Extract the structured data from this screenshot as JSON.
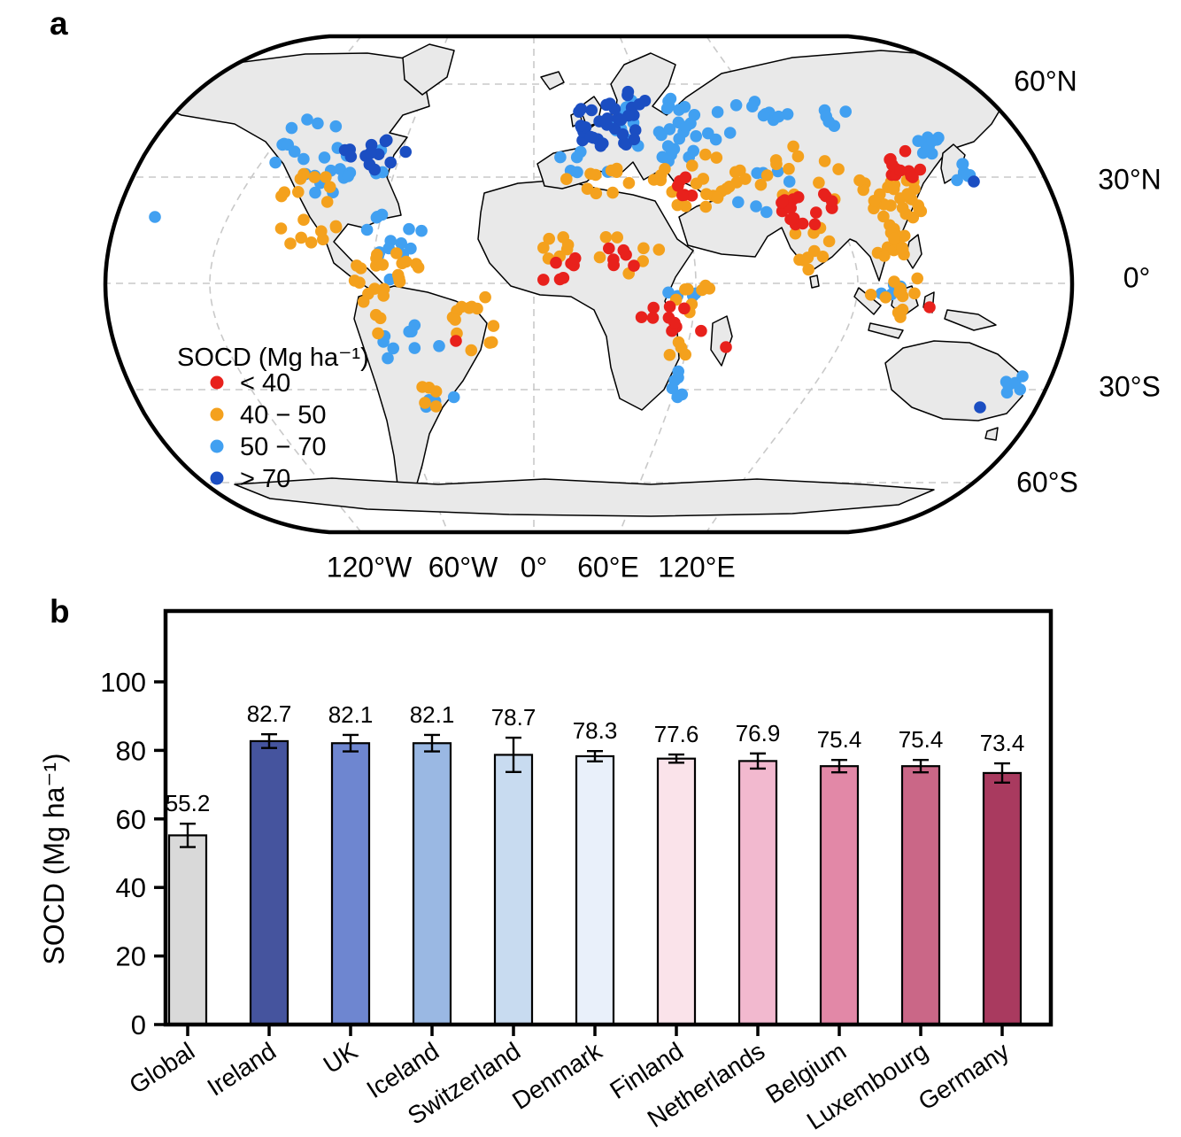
{
  "panels": {
    "a": "a",
    "b": "b"
  },
  "map": {
    "legend": {
      "title": "SOCD (Mg ha⁻¹)",
      "items": [
        {
          "label": "< 40",
          "color": "#e8211c"
        },
        {
          "label": "40 − 50",
          "color": "#f4a11d"
        },
        {
          "label": "50 − 70",
          "color": "#41a0f1"
        },
        {
          "label": "> 70",
          "color": "#1b4ec2"
        }
      ]
    },
    "lat_labels": [
      "60°N",
      "30°N",
      "0°",
      "30°S",
      "60°S"
    ],
    "lon_labels": [
      "120°W",
      "60°W",
      "0°",
      "60°E",
      "120°E"
    ]
  },
  "chart_data": [
    {
      "type": "scatter",
      "title": "Global distribution of SOCD sampling sites",
      "legend_title": "SOCD (Mg ha⁻¹)",
      "categories": [
        "< 40",
        "40 − 50",
        "50 − 70",
        "> 70"
      ],
      "colors": {
        "r": "#e8211c",
        "o": "#f4a11d",
        "b": "#41a0f1",
        "n": "#1b4ec2"
      },
      "dot_radius": 6.8,
      "clusters": [
        [
          260,
          140,
          67,
          45,
          26,
          "b"
        ],
        [
          330,
          232,
          35,
          28,
          10,
          "b"
        ],
        [
          352,
          360,
          40,
          28,
          9,
          "b"
        ],
        [
          372,
          418,
          30,
          14,
          4,
          "b"
        ],
        [
          331,
          263,
          33,
          18,
          4,
          "b"
        ],
        [
          628,
          112,
          55,
          40,
          28,
          "b"
        ],
        [
          710,
          100,
          65,
          25,
          14,
          "b"
        ],
        [
          545,
          152,
          38,
          16,
          6,
          "b"
        ],
        [
          745,
          180,
          40,
          25,
          8,
          "b"
        ],
        [
          798,
          98,
          54,
          14,
          10,
          "b"
        ],
        [
          930,
          128,
          18,
          14,
          9,
          "b"
        ],
        [
          968,
          160,
          20,
          12,
          6,
          "b"
        ],
        [
          657,
          293,
          25,
          8,
          4,
          "b"
        ],
        [
          646,
          398,
          12,
          20,
          6,
          "b"
        ],
        [
          900,
          298,
          30,
          24,
          4,
          "b"
        ],
        [
          1022,
          402,
          16,
          14,
          5,
          "b"
        ],
        [
          235,
          205,
          43,
          48,
          18,
          "o"
        ],
        [
          317,
          270,
          37,
          25,
          9,
          "o"
        ],
        [
          331,
          263,
          33,
          18,
          8,
          "o"
        ],
        [
          423,
          332,
          28,
          40,
          13,
          "o"
        ],
        [
          307,
          325,
          17,
          40,
          7,
          "o"
        ],
        [
          370,
          415,
          32,
          17,
          5,
          "o"
        ],
        [
          578,
          168,
          54,
          17,
          12,
          "o"
        ],
        [
          675,
          170,
          53,
          33,
          22,
          "o"
        ],
        [
          513,
          240,
          18,
          23,
          6,
          "o"
        ],
        [
          575,
          255,
          60,
          25,
          8,
          "o"
        ],
        [
          680,
          303,
          32,
          18,
          8,
          "o"
        ],
        [
          650,
          360,
          12,
          12,
          4,
          "o"
        ],
        [
          805,
          157,
          70,
          38,
          16,
          "o"
        ],
        [
          905,
          193,
          37,
          25,
          24,
          "o"
        ],
        [
          800,
          245,
          25,
          26,
          10,
          "o"
        ],
        [
          885,
          238,
          23,
          20,
          10,
          "o"
        ],
        [
          900,
          298,
          32,
          26,
          12,
          "o"
        ],
        [
          902,
          240,
          8,
          16,
          4,
          "o"
        ],
        [
          570,
          258,
          42,
          20,
          9,
          "r"
        ],
        [
          510,
          280,
          15,
          20,
          4,
          "r"
        ],
        [
          638,
          327,
          50,
          25,
          10,
          "r"
        ],
        [
          660,
          173,
          15,
          15,
          6,
          "r"
        ],
        [
          795,
          200,
          33,
          23,
          18,
          "r"
        ],
        [
          905,
          153,
          20,
          18,
          12,
          "r"
        ],
        [
          572,
          105,
          40,
          27,
          30,
          "n"
        ],
        [
          315,
          140,
          43,
          18,
          13,
          "n"
        ],
        [
          608,
          75,
          20,
          12,
          4,
          "n"
        ]
      ],
      "singles": [
        [
          60,
          210,
          "b"
        ],
        [
          1078,
          422,
          "b"
        ],
        [
          1040,
          390,
          "b"
        ],
        [
          400,
          350,
          "r"
        ],
        [
          705,
          357,
          "r"
        ],
        [
          935,
          312,
          "r"
        ],
        [
          985,
          170,
          "n"
        ],
        [
          992,
          425,
          "n"
        ]
      ]
    },
    {
      "type": "bar",
      "categories": [
        "Global",
        "Ireland",
        "UK",
        "Iceland",
        "Switzerland",
        "Denmark",
        "Finland",
        "Netherlands",
        "Belgium",
        "Luxembourg",
        "Germany"
      ],
      "values": [
        55.2,
        82.7,
        82.1,
        82.1,
        78.7,
        78.3,
        77.6,
        76.9,
        75.4,
        75.4,
        73.4
      ],
      "errors": [
        3.4,
        2.0,
        2.4,
        2.4,
        5.0,
        1.5,
        1.2,
        2.2,
        1.8,
        1.8,
        2.8
      ],
      "bar_colors": [
        "#d9d9d9",
        "#45549e",
        "#6e86d0",
        "#9ab8e3",
        "#c8dbf0",
        "#e9f0fa",
        "#fae3ea",
        "#f2b9cf",
        "#e288a7",
        "#ca6787",
        "#a93a5f"
      ],
      "value_labels": [
        "55.2",
        "82.7",
        "82.1",
        "82.1",
        "78.7",
        "78.3",
        "77.6",
        "76.9",
        "75.4",
        "75.4",
        "73.4"
      ],
      "ylabel": "SOCD (Mg ha⁻¹)",
      "yticks": [
        0,
        20,
        40,
        60,
        80,
        100
      ],
      "ylim": [
        0,
        120
      ],
      "grid": false,
      "legend_position": "none"
    }
  ]
}
